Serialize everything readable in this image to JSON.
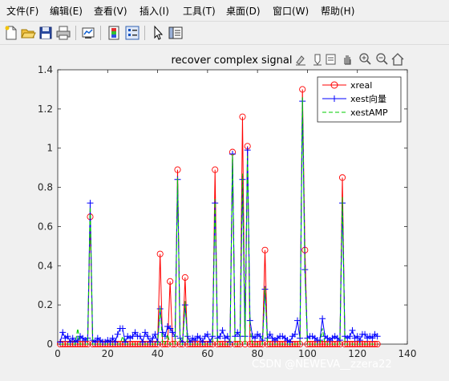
{
  "menu": {
    "items": [
      "文件(F)",
      "编辑(E)",
      "查看(V)",
      "插入(I)",
      "工具(T)",
      "桌面(D)",
      "窗口(W)",
      "帮助(H)"
    ]
  },
  "toolbar": {
    "icons": [
      "new-file-icon",
      "open-folder-icon",
      "save-icon",
      "print-icon",
      "link-plot-icon",
      "colorbar-icon",
      "legend-icon",
      "pointer-icon",
      "property-editor-icon"
    ]
  },
  "axes_toolbar": {
    "icons": [
      "brush-icon",
      "data-tips-icon",
      "restore-view-icon",
      "pan-icon",
      "zoom-in-icon",
      "zoom-out-icon",
      "home-icon"
    ]
  },
  "watermark": "CSDN @NEWEVA__zzera22",
  "colors": {
    "xreal": "#ff0000",
    "xest": "#0000ff",
    "xestAMP": "#00cc00",
    "axes_bg": "#ffffff",
    "window_bg": "#f0f0f0"
  },
  "chart_data": {
    "type": "line",
    "title": "recover  complex signal",
    "xlabel": "",
    "ylabel": "",
    "xlim": [
      0,
      140
    ],
    "ylim": [
      0,
      1.4
    ],
    "xticks": [
      "0",
      "20",
      "40",
      "60",
      "80",
      "100",
      "120",
      "140"
    ],
    "yticks": [
      "0",
      "0.2",
      "0.4",
      "0.6",
      "0.8",
      "1",
      "1.2",
      "1.4"
    ],
    "legend_position": "top-right",
    "x_range": [
      1,
      128
    ],
    "series": [
      {
        "name": "xreal",
        "style": "red-circles",
        "nonzero": [
          [
            13,
            0.65
          ],
          [
            41,
            0.46
          ],
          [
            45,
            0.32
          ],
          [
            48,
            0.89
          ],
          [
            51,
            0.34
          ],
          [
            63,
            0.89
          ],
          [
            70,
            0.98
          ],
          [
            74,
            1.16
          ],
          [
            76,
            1.01
          ],
          [
            83,
            0.48
          ],
          [
            98,
            1.3
          ],
          [
            99,
            0.48
          ],
          [
            114,
            0.85
          ]
        ],
        "baseline": 0
      },
      {
        "name": "xest向量",
        "style": "blue-plus",
        "nonzero": [
          [
            2,
            0.06
          ],
          [
            3,
            0.03
          ],
          [
            4,
            0.04
          ],
          [
            6,
            0.03
          ],
          [
            8,
            0.02
          ],
          [
            9,
            0.04
          ],
          [
            10,
            0.03
          ],
          [
            11,
            0.02
          ],
          [
            12,
            0.03
          ],
          [
            13,
            0.72
          ],
          [
            14,
            0.02
          ],
          [
            16,
            0.03
          ],
          [
            17,
            0.02
          ],
          [
            20,
            0.02
          ],
          [
            22,
            0.03
          ],
          [
            24,
            0.05
          ],
          [
            25,
            0.08
          ],
          [
            26,
            0.08
          ],
          [
            28,
            0.04
          ],
          [
            29,
            0.03
          ],
          [
            30,
            0.04
          ],
          [
            31,
            0.06
          ],
          [
            32,
            0.04
          ],
          [
            33,
            0.04
          ],
          [
            35,
            0.06
          ],
          [
            36,
            0.04
          ],
          [
            38,
            0.03
          ],
          [
            39,
            0.05
          ],
          [
            41,
            0.18
          ],
          [
            42,
            0.06
          ],
          [
            43,
            0.04
          ],
          [
            44,
            0.09
          ],
          [
            45,
            0.08
          ],
          [
            46,
            0.06
          ],
          [
            47,
            0.04
          ],
          [
            48,
            0.84
          ],
          [
            49,
            0.03
          ],
          [
            51,
            0.2
          ],
          [
            52,
            0.04
          ],
          [
            54,
            0.03
          ],
          [
            55,
            0.02
          ],
          [
            56,
            0.04
          ],
          [
            57,
            0.03
          ],
          [
            59,
            0.04
          ],
          [
            60,
            0.05
          ],
          [
            62,
            0.04
          ],
          [
            63,
            0.72
          ],
          [
            64,
            0.03
          ],
          [
            65,
            0.04
          ],
          [
            66,
            0.07
          ],
          [
            67,
            0.03
          ],
          [
            68,
            0.04
          ],
          [
            70,
            0.97
          ],
          [
            71,
            0.04
          ],
          [
            72,
            0.06
          ],
          [
            73,
            0.04
          ],
          [
            74,
            0.84
          ],
          [
            75,
            0.04
          ],
          [
            76,
            0.99
          ],
          [
            77,
            0.12
          ],
          [
            78,
            0.04
          ],
          [
            79,
            0.03
          ],
          [
            80,
            0.05
          ],
          [
            81,
            0.04
          ],
          [
            82,
            0.02
          ],
          [
            83,
            0.28
          ],
          [
            84,
            0.03
          ],
          [
            85,
            0.05
          ],
          [
            86,
            0.03
          ],
          [
            87,
            0.02
          ],
          [
            88,
            0.03
          ],
          [
            89,
            0.04
          ],
          [
            90,
            0.04
          ],
          [
            91,
            0.03
          ],
          [
            92,
            0.02
          ],
          [
            94,
            0.04
          ],
          [
            95,
            0.05
          ],
          [
            96,
            0.12
          ],
          [
            97,
            0.03
          ],
          [
            98,
            1.24
          ],
          [
            99,
            0.38
          ],
          [
            100,
            0.03
          ],
          [
            101,
            0.04
          ],
          [
            102,
            0.04
          ],
          [
            103,
            0.03
          ],
          [
            104,
            0.02
          ],
          [
            105,
            0.02
          ],
          [
            106,
            0.13
          ],
          [
            107,
            0.04
          ],
          [
            108,
            0.03
          ],
          [
            109,
            0.02
          ],
          [
            110,
            0.03
          ],
          [
            111,
            0.04
          ],
          [
            112,
            0.03
          ],
          [
            113,
            0.02
          ],
          [
            114,
            0.72
          ],
          [
            115,
            0.04
          ],
          [
            116,
            0.03
          ],
          [
            117,
            0.04
          ],
          [
            118,
            0.07
          ],
          [
            119,
            0.03
          ],
          [
            120,
            0.04
          ],
          [
            121,
            0.02
          ],
          [
            122,
            0.05
          ],
          [
            123,
            0.05
          ],
          [
            124,
            0.03
          ],
          [
            125,
            0.04
          ],
          [
            126,
            0.03
          ],
          [
            127,
            0.05
          ],
          [
            128,
            0.04
          ]
        ],
        "baseline": 0.01
      },
      {
        "name": "xestAMP",
        "style": "green-dashed",
        "nonzero": [
          [
            8,
            0.08
          ],
          [
            13,
            0.7
          ],
          [
            26,
            0.04
          ],
          [
            41,
            0.19
          ],
          [
            44,
            0.05
          ],
          [
            48,
            0.85
          ],
          [
            51,
            0.22
          ],
          [
            63,
            0.74
          ],
          [
            70,
            0.97
          ],
          [
            74,
            0.87
          ],
          [
            76,
            0.96
          ],
          [
            77,
            0.08
          ],
          [
            83,
            0.29
          ],
          [
            98,
            1.26
          ],
          [
            99,
            0.37
          ],
          [
            106,
            0.08
          ],
          [
            114,
            0.75
          ]
        ],
        "baseline": 0
      }
    ]
  }
}
